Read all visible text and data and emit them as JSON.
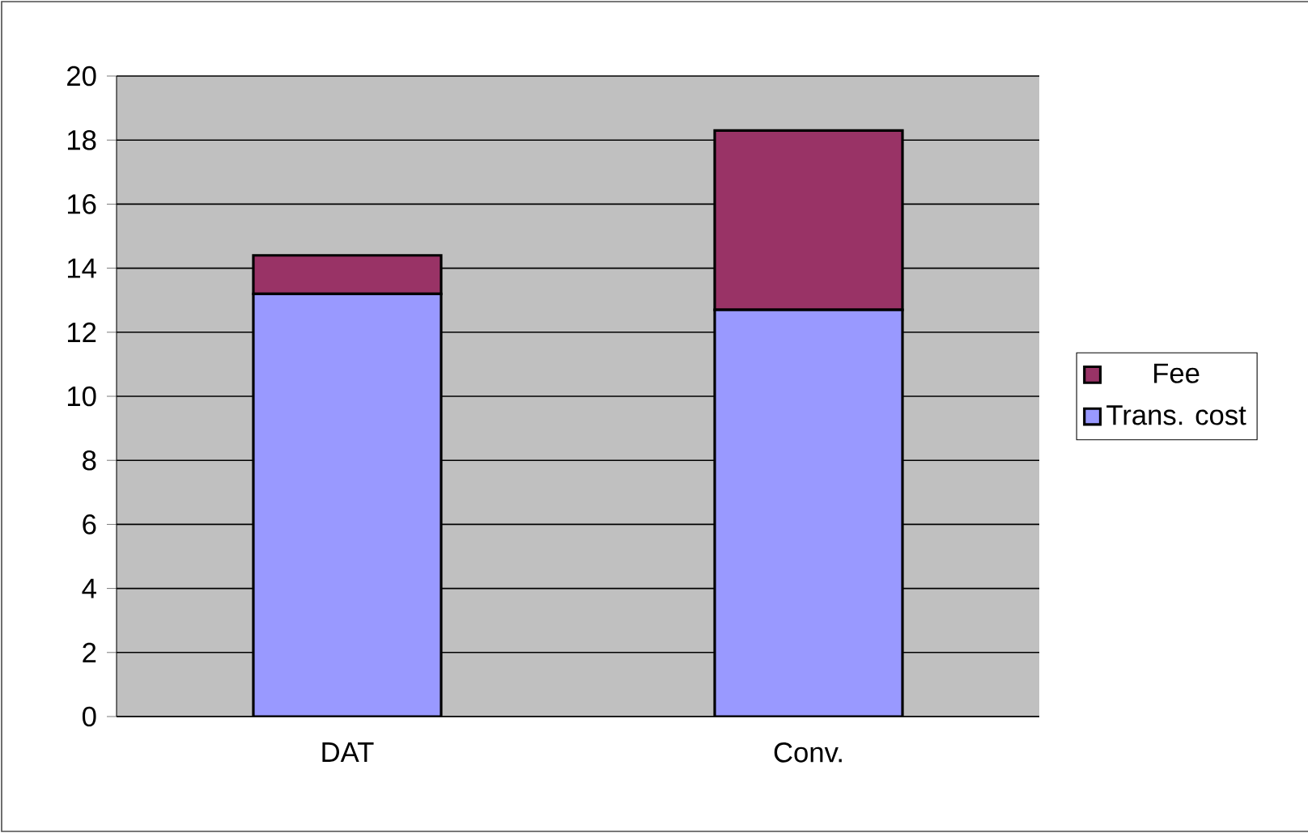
{
  "chart_data": {
    "type": "bar",
    "stacked": true,
    "categories": [
      "DAT",
      "Conv."
    ],
    "series": [
      {
        "name": "Trans. cost",
        "color": "#9999ff",
        "values": [
          13.2,
          12.7
        ]
      },
      {
        "name": "Fee",
        "color": "#993366",
        "values": [
          1.2,
          5.6
        ]
      }
    ],
    "ylim": [
      0,
      20
    ],
    "yticks": [
      0,
      2,
      4,
      6,
      8,
      10,
      12,
      14,
      16,
      18,
      20
    ],
    "grid": "y",
    "legend": "right"
  }
}
